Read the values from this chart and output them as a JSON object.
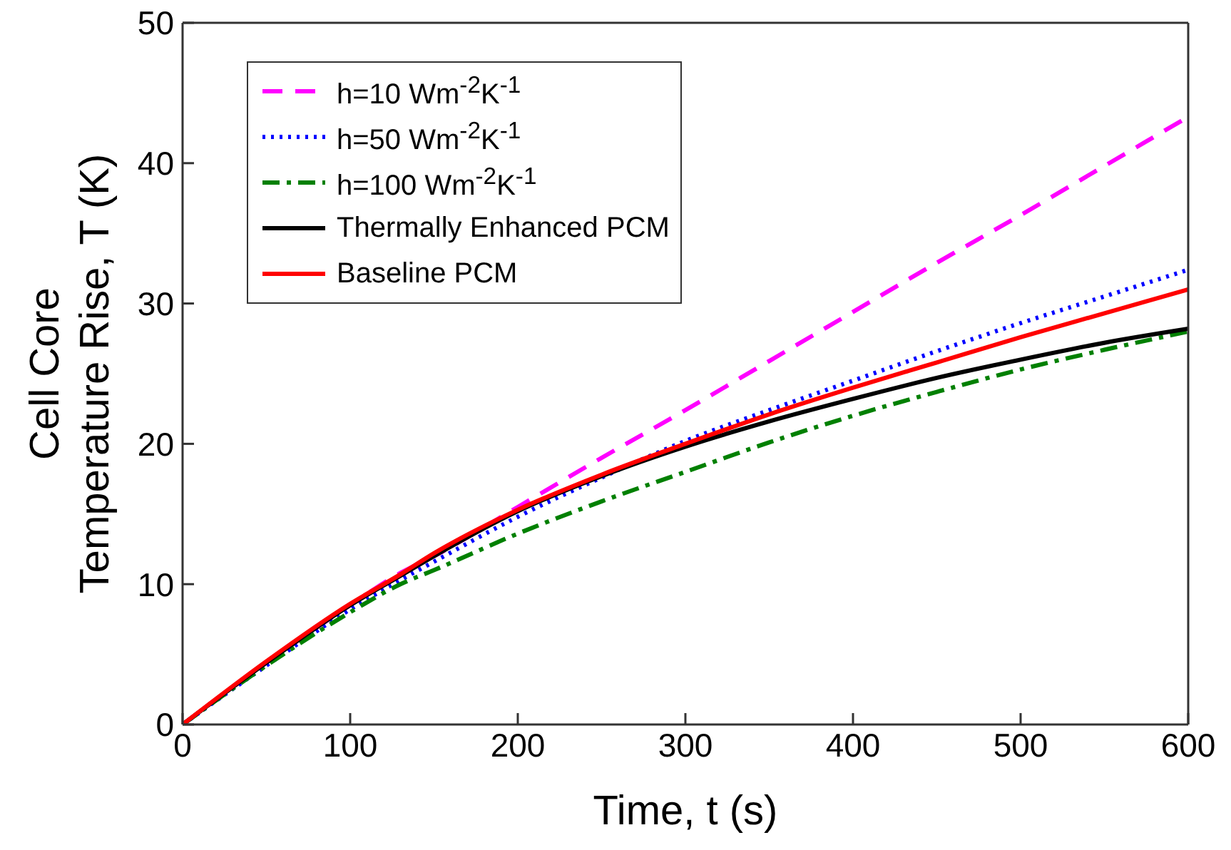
{
  "chart_data": {
    "type": "line",
    "xlabel": "Time, t (s)",
    "ylabel": "Cell Core\nTemperature Rise, T (K)",
    "x": [
      0,
      50,
      100,
      130,
      150,
      200,
      250,
      300,
      350,
      400,
      450,
      500,
      550,
      600
    ],
    "xlim": [
      0,
      600
    ],
    "xticks": [
      0,
      100,
      200,
      300,
      400,
      500,
      600
    ],
    "ylim": [
      0,
      50
    ],
    "yticks": [
      0,
      10,
      20,
      30,
      40,
      50
    ],
    "grid": false,
    "legend": "top left",
    "marker": "none",
    "series": [
      {
        "name": "h=10 Wm$^{-2}$K$^{-1}$",
        "color": "#ff00ff",
        "line_style": "dashed",
        "values": [
          0,
          4.4,
          8.5,
          10.8,
          12.0,
          15.5,
          19.0,
          22.4,
          25.9,
          29.4,
          32.9,
          36.3,
          39.8,
          43.3
        ]
      },
      {
        "name": "h=50 Wm$^{-2}$K$^{-1}$",
        "color": "#0000ff",
        "line_style": "dotted",
        "values": [
          0,
          4.2,
          8.2,
          10.3,
          11.6,
          14.8,
          17.6,
          20.2,
          22.4,
          24.5,
          26.6,
          28.6,
          30.5,
          32.4
        ]
      },
      {
        "name": "h=100 Wm$^{-2}$K$^{-1}$",
        "color": "#008000",
        "line_style": "dashdot",
        "values": [
          0,
          4.2,
          8.0,
          10.0,
          11.0,
          13.6,
          15.9,
          18.0,
          20.1,
          22.0,
          23.7,
          25.3,
          26.7,
          28.0
        ]
      },
      {
        "name": "Thermally Enhanced PCM",
        "color": "#000000",
        "line_style": "solid",
        "values": [
          0,
          4.4,
          8.5,
          10.6,
          12.0,
          15.2,
          17.7,
          19.8,
          21.6,
          23.2,
          24.7,
          26.0,
          27.2,
          28.2
        ]
      },
      {
        "name": "Baseline PCM",
        "color": "#ff0000",
        "line_style": "solid",
        "values": [
          0,
          4.5,
          8.6,
          10.7,
          12.2,
          15.3,
          17.8,
          20.0,
          22.1,
          24.0,
          25.8,
          27.6,
          29.3,
          31.0
        ]
      }
    ]
  }
}
